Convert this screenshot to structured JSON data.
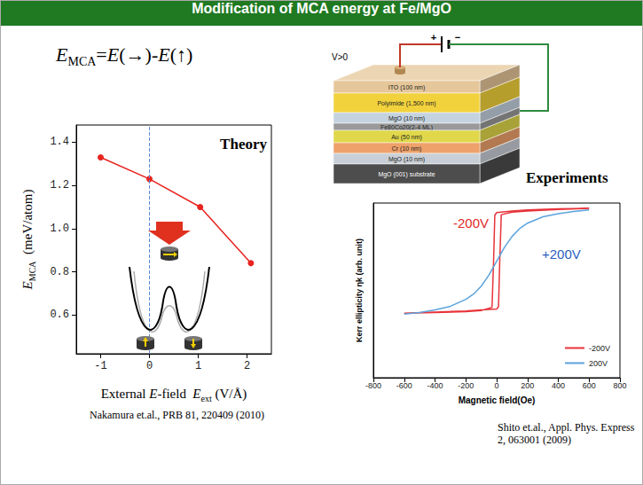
{
  "header": {
    "title": "Modification of MCA energy at Fe/MgO"
  },
  "formula": [
    {
      "text": "E",
      "italic": true
    },
    {
      "text": "MCA",
      "sub": true
    },
    {
      "text": "="
    },
    {
      "text": "E",
      "italic": true
    },
    {
      "text": "(→)-"
    },
    {
      "text": "E",
      "italic": true
    },
    {
      "text": "(↑)"
    }
  ],
  "chart_data": [
    {
      "type": "line",
      "annotations": [
        {
          "text": "Theory"
        }
      ],
      "x_label": [
        {
          "text": "External "
        },
        {
          "text": "E",
          "italic": true
        },
        {
          "text": "-field  "
        },
        {
          "text": "E",
          "italic": true
        },
        {
          "text": "ext",
          "sub": true
        },
        {
          "text": " (V/Å)"
        }
      ],
      "y_label": [
        {
          "text": "E",
          "italic": true
        },
        {
          "text": "MCA",
          "sub": true
        },
        {
          "text": "  (meV/atom)"
        }
      ],
      "x": [
        -1,
        0,
        1.04,
        2.08
      ],
      "values": [
        1.33,
        1.23,
        1.1,
        0.84
      ],
      "color": "#e8231f",
      "marker": "circle",
      "xlim": [
        -1.5,
        2.5
      ],
      "xticks": [
        -1,
        0,
        1,
        2
      ],
      "ylim": [
        0.42,
        1.48
      ],
      "yticks": [
        0.6,
        0.8,
        {
          "value": 1,
          "label": "1.0"
        },
        1.2,
        1.4
      ],
      "grid": false,
      "reference_line": {
        "x": 0,
        "line_style": "dashed",
        "color": "#5b8ad6"
      },
      "source": "Nakamura et.al., PRB 81, 220409 (2010)"
    },
    {
      "type": "line",
      "annotations": [
        {
          "text": "Experiments"
        },
        {
          "text": "-200V",
          "color": "#e02a2a"
        },
        {
          "text": "+200V",
          "color": "#2a5fc0"
        }
      ],
      "x_label": "Magnetic field(Oe)",
      "y_label": "Kerr ellipticity ηk (arb. unit)",
      "series": [
        {
          "name": "-200V",
          "color": "#e8333a",
          "x": [
            -600,
            -400,
            -200,
            -100,
            0,
            12,
            20,
            30,
            100,
            200,
            400,
            600,
            400,
            200,
            100,
            0,
            -12,
            -20,
            -30,
            -100,
            -200,
            -400,
            -600
          ],
          "values": [
            -0.98,
            -0.96,
            -0.94,
            -0.92,
            -0.9,
            -0.86,
            0.0,
            0.88,
            0.93,
            0.95,
            0.98,
            1.0,
            0.99,
            0.97,
            0.95,
            0.92,
            0.87,
            0.0,
            -0.87,
            -0.93,
            -0.95,
            -0.97,
            -0.98
          ]
        },
        {
          "name": "200V",
          "color": "#5ba3dc",
          "x": [
            -600,
            -500,
            -400,
            -300,
            -200,
            -150,
            -100,
            -50,
            0,
            50,
            100,
            150,
            200,
            300,
            400,
            500,
            600
          ],
          "values": [
            -1.0,
            -0.97,
            -0.92,
            -0.85,
            -0.72,
            -0.62,
            -0.47,
            -0.26,
            0.0,
            0.26,
            0.47,
            0.62,
            0.72,
            0.84,
            0.9,
            0.94,
            0.97
          ]
        }
      ],
      "xlim": [
        -800,
        800
      ],
      "xticks": [
        -800,
        -600,
        -400,
        -200,
        0,
        200,
        400,
        600,
        800
      ],
      "ylim": [
        -2.2,
        1.1
      ],
      "tick_labels": "x",
      "grid": false,
      "legend": "lower right",
      "source": "Shito et.al., Appl. Phys. Express 2, 063001 (2009)"
    }
  ],
  "device": {
    "voltage": "V>0",
    "plus": "+",
    "minus": "−",
    "layers": [
      {
        "label": "ITO (100 nm)",
        "color": "#e6c79a"
      },
      {
        "label": "Polyimide (1,500 nm)",
        "color": "#f2d23c"
      },
      {
        "label": "MgO (10 nm)",
        "color": "#c5d3e0"
      },
      {
        "label": "Fe80Co20(2-4 ML)",
        "color": "#9a9a9a"
      },
      {
        "label": "Au (50 nm)",
        "color": "#e0d84a"
      },
      {
        "label": "Cr (10 nm)",
        "color": "#eea16a"
      },
      {
        "label": "MgO (10 nm)",
        "color": "#c9cfd6"
      },
      {
        "label": "MgO (001) substrate",
        "color": "#4d4d4d"
      }
    ]
  }
}
